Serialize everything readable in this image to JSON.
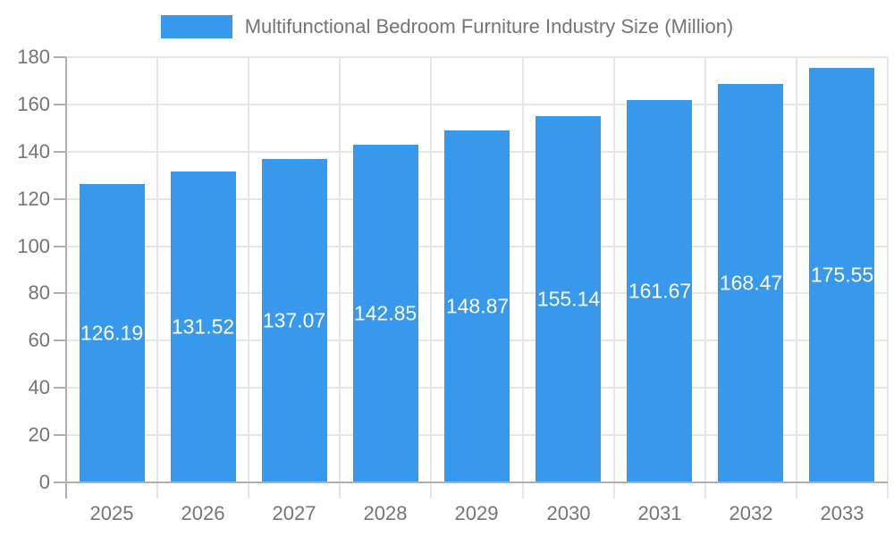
{
  "chart_data": {
    "type": "bar",
    "title": "Multifunctional Bedroom Furniture Industry Size (Million)",
    "legend_position": "top",
    "categories": [
      "2025",
      "2026",
      "2027",
      "2028",
      "2029",
      "2030",
      "2031",
      "2032",
      "2033"
    ],
    "values": [
      126.19,
      131.52,
      137.07,
      142.85,
      148.87,
      155.14,
      161.67,
      168.47,
      175.55
    ],
    "value_labels": [
      "126.19",
      "131.52",
      "137.07",
      "142.85",
      "148.87",
      "155.14",
      "161.67",
      "168.47",
      "175.55"
    ],
    "xlabel": "",
    "ylabel": "",
    "ylim": [
      0,
      180
    ],
    "y_ticks": [
      0,
      20,
      40,
      60,
      80,
      100,
      120,
      140,
      160,
      180
    ],
    "grid": true,
    "colors": {
      "bar": "#3898EC",
      "grid": "#E6E6E6",
      "axis": "#AFAFAF",
      "text": "#757575",
      "value_text": "#FFFFFF",
      "background": "#FFFFFF"
    }
  }
}
